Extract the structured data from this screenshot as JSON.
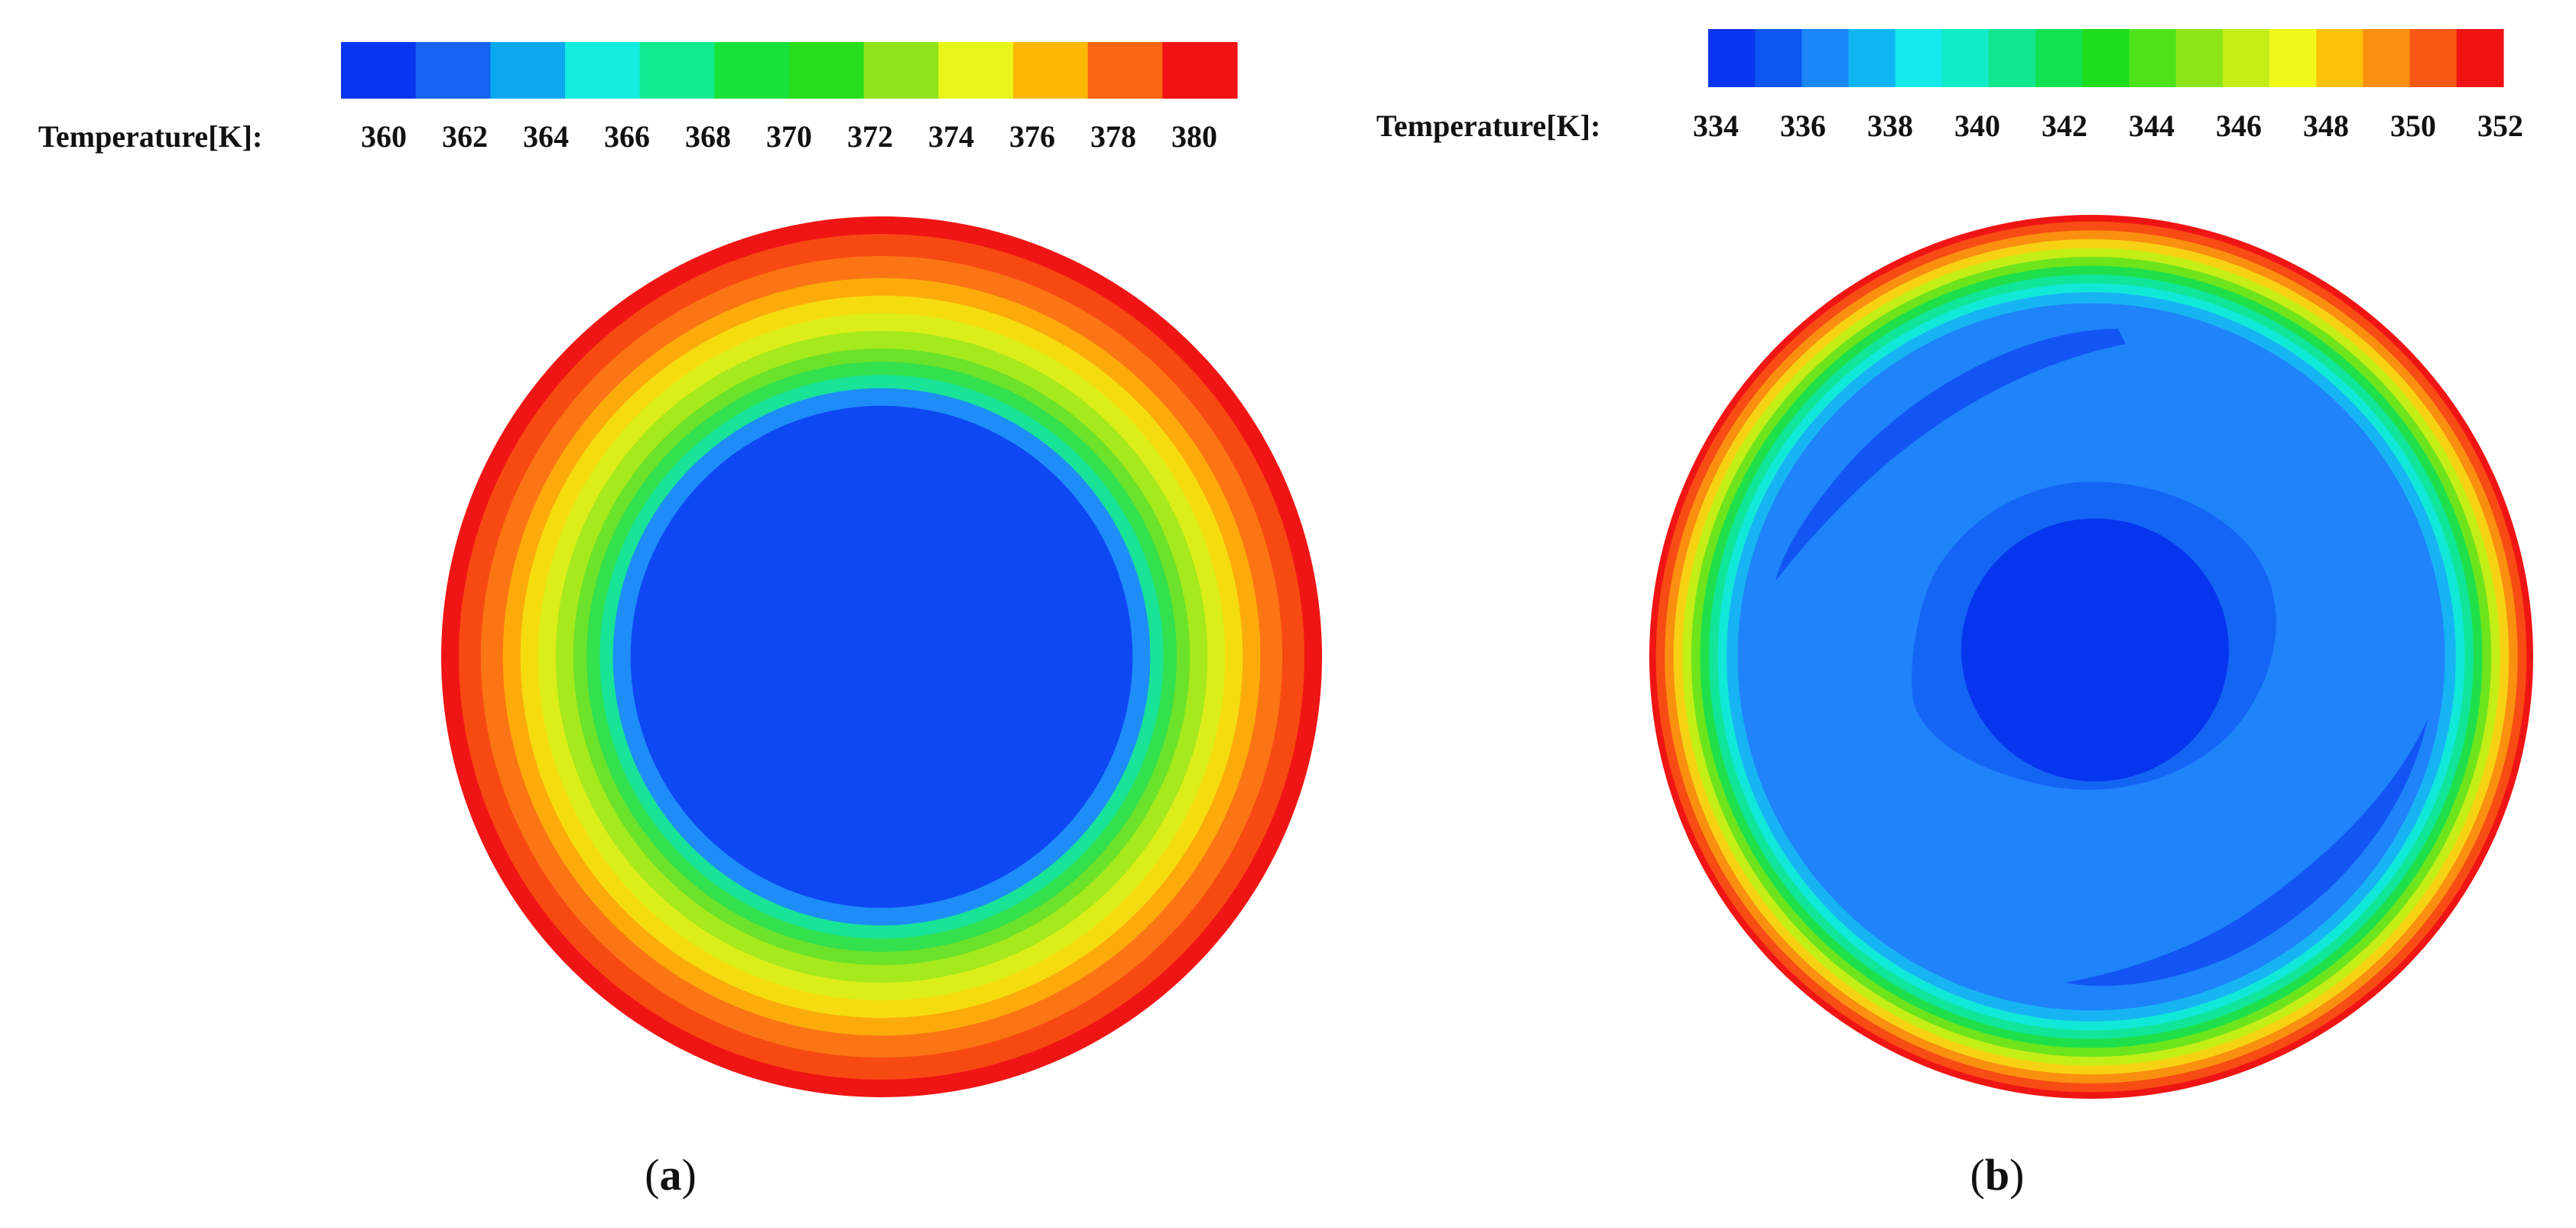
{
  "panels": [
    {
      "id": "a",
      "label_open": "(",
      "label_letter": "a",
      "label_close": ")",
      "legend_title": "Temperature[K]:",
      "ticks": [
        "360",
        "362",
        "364",
        "366",
        "368",
        "370",
        "372",
        "374",
        "376",
        "378",
        "380"
      ],
      "colorbar_colors": [
        "#0a35f0",
        "#1763f2",
        "#0aa8ee",
        "#13ecde",
        "#12ea90",
        "#16e23a",
        "#27dd1c",
        "#8fe31a",
        "#e9f51a",
        "#fdb707",
        "#fb6413",
        "#f11313"
      ],
      "contour_bands": [
        {
          "color": "#f01515",
          "outer_fraction": 1.0
        },
        {
          "color": "#f74a12",
          "outer_fraction": 0.96
        },
        {
          "color": "#fb7514",
          "outer_fraction": 0.91
        },
        {
          "color": "#fcab0b",
          "outer_fraction": 0.86
        },
        {
          "color": "#f5dc10",
          "outer_fraction": 0.82
        },
        {
          "color": "#dbee1a",
          "outer_fraction": 0.78
        },
        {
          "color": "#a6e91c",
          "outer_fraction": 0.74
        },
        {
          "color": "#6ce22a",
          "outer_fraction": 0.7
        },
        {
          "color": "#33e04d",
          "outer_fraction": 0.67
        },
        {
          "color": "#18e396",
          "outer_fraction": 0.64
        },
        {
          "color": "#1e8dfa",
          "outer_fraction": 0.61
        },
        {
          "color": "#0e48f2",
          "outer_fraction": 0.57
        }
      ]
    },
    {
      "id": "b",
      "label_open": "(",
      "label_letter": "b",
      "label_close": ")",
      "legend_title": "Temperature[K]:",
      "ticks": [
        "334",
        "336",
        "338",
        "340",
        "342",
        "344",
        "346",
        "348",
        "350",
        "352"
      ],
      "colorbar_colors": [
        "#0a35f0",
        "#0b56f3",
        "#1b86f7",
        "#0fb6f3",
        "#14eaec",
        "#11eac6",
        "#11e58e",
        "#12e151",
        "#1ddd1c",
        "#4ee21d",
        "#8be518",
        "#c4ee18",
        "#f1f81a",
        "#fdc208",
        "#fa8f10",
        "#f95714",
        "#f11313"
      ],
      "contour_bands": [
        {
          "color": "#f01515",
          "outer_fraction": 1.0
        },
        {
          "color": "#f74c14",
          "outer_fraction": 0.985
        },
        {
          "color": "#fa8f10",
          "outer_fraction": 0.965
        },
        {
          "color": "#f7d214",
          "outer_fraction": 0.945
        },
        {
          "color": "#c4ee18",
          "outer_fraction": 0.925
        },
        {
          "color": "#6de41c",
          "outer_fraction": 0.905
        },
        {
          "color": "#1fe04a",
          "outer_fraction": 0.885
        },
        {
          "color": "#11e59a",
          "outer_fraction": 0.865
        },
        {
          "color": "#12e8d8",
          "outer_fraction": 0.845
        },
        {
          "color": "#17b4f4",
          "outer_fraction": 0.825
        },
        {
          "color": "#1f83fa",
          "outer_fraction": 0.8
        }
      ],
      "core_colors": {
        "inner_ring": "#1565f5",
        "core": "#0635ee",
        "streak": "#1255f2"
      }
    }
  ]
}
